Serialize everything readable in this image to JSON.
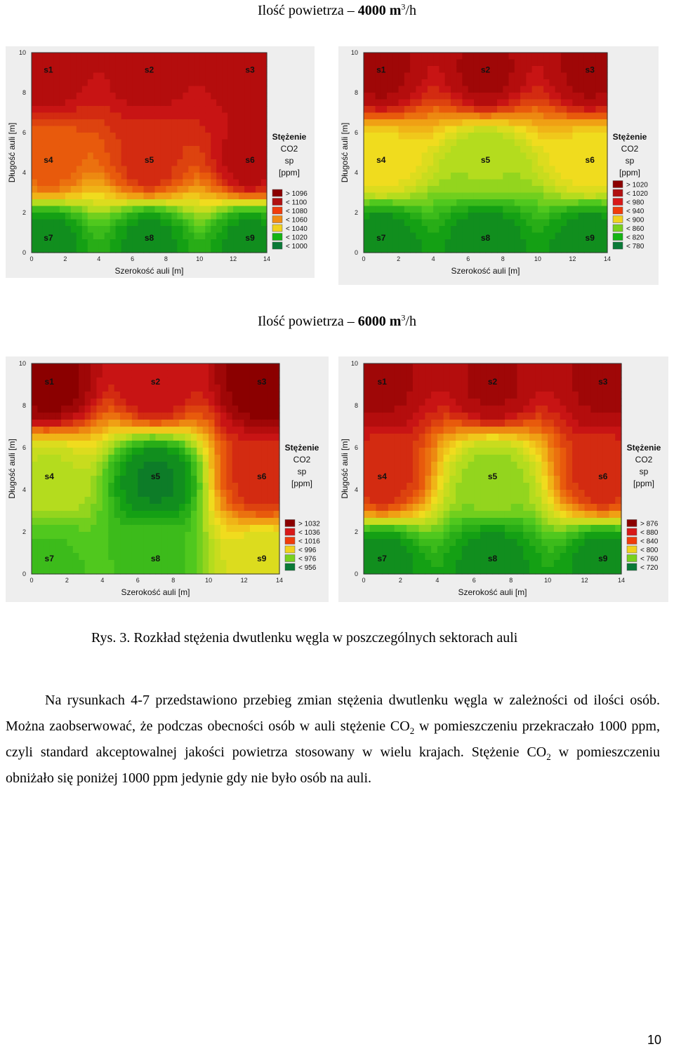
{
  "heading_1": {
    "prefix": "Ilość powietrza – ",
    "value": "4000",
    "unit": "m",
    "exp": "3",
    "suffix": "/h"
  },
  "heading_2": {
    "prefix": "Ilość powietrza – ",
    "value": "6000",
    "unit": "m",
    "exp": "3",
    "suffix": "/h"
  },
  "plot_common": {
    "x_label": "Szerokość auli [m]",
    "y_label": "Długość auli [m]",
    "x_ticks": [
      "0",
      "2",
      "4",
      "6",
      "8",
      "10",
      "12",
      "14"
    ],
    "y_ticks": [
      "0",
      "2",
      "4",
      "6",
      "8",
      "10"
    ],
    "legend_title": [
      "Stężenie",
      "CO2",
      "sp",
      "[ppm]"
    ],
    "sensors": [
      {
        "id": "s1",
        "x": 1,
        "y": 9
      },
      {
        "id": "s2",
        "x": 7,
        "y": 9
      },
      {
        "id": "s3",
        "x": 13,
        "y": 9
      },
      {
        "id": "s4",
        "x": 1,
        "y": 4.5
      },
      {
        "id": "s5",
        "x": 7,
        "y": 4.5
      },
      {
        "id": "s6",
        "x": 13,
        "y": 4.5
      },
      {
        "id": "s7",
        "x": 1,
        "y": 0.6
      },
      {
        "id": "s8",
        "x": 7,
        "y": 0.6
      },
      {
        "id": "s9",
        "x": 13,
        "y": 0.6
      }
    ]
  },
  "legend_colors": [
    "#8b0000",
    "#b01010",
    "#d81818",
    "#f03c0c",
    "#f08c14",
    "#f0d21e",
    "#78d21e",
    "#14b414",
    "#0a7a37"
  ],
  "chart_data": [
    {
      "type": "heatmap",
      "title": "4000 m3/h (a)",
      "sensor_values": [
        1100,
        1100,
        1100,
        1080,
        1090,
        1100,
        1000,
        1000,
        1000
      ],
      "legend": [
        "> 1096",
        "< 1100",
        "< 1080",
        "< 1060",
        "< 1040",
        "< 1020",
        "< 1000"
      ],
      "vmin": 990,
      "vmax": 1110
    },
    {
      "type": "heatmap",
      "title": "4000 m3/h (b)",
      "sensor_values": [
        1025,
        1025,
        1025,
        900,
        860,
        900,
        780,
        780,
        780
      ],
      "legend": [
        "> 1020",
        "< 1020",
        "< 980",
        "< 940",
        "< 900",
        "< 860",
        "< 820",
        "< 780"
      ],
      "vmin": 760,
      "vmax": 1040
    },
    {
      "type": "heatmap",
      "title": "6000 m3/h (a)",
      "sensor_values": [
        1040,
        1030,
        1040,
        985,
        955,
        1025,
        970,
        970,
        990
      ],
      "legend": [
        "> 1032",
        "< 1036",
        "< 1016",
        "< 996",
        "< 976",
        "< 956"
      ],
      "vmin": 950,
      "vmax": 1040
    },
    {
      "type": "heatmap",
      "title": "6000 m3/h (b)",
      "sensor_values": [
        880,
        880,
        880,
        860,
        770,
        860,
        725,
        725,
        725
      ],
      "legend": [
        "> 876",
        "< 880",
        "< 840",
        "< 800",
        "< 760",
        "< 720"
      ],
      "vmin": 710,
      "vmax": 890
    }
  ],
  "caption": "Rys.  3. Rozkład stężenia dwutlenku węgla w poszczególnych sektorach auli",
  "paragraph": {
    "t1": "Na rysunkach 4-7 przedstawiono przebieg zmian stężenia dwutlenku węgla w zależności od ilości osób. Można zaobserwować, że podczas obecności osób w auli stężenie CO",
    "sub1": "2",
    "t2": " w pomieszczeniu przekraczało 1000 ppm, czyli standard akceptowalnej jakości powietrza stosowany w wielu krajach. Stężenie CO",
    "sub2": "2",
    "t3": " w pomieszczeniu obniżało się poniżej 1000 ppm jedynie gdy nie było osób na auli."
  },
  "page_number": "10"
}
